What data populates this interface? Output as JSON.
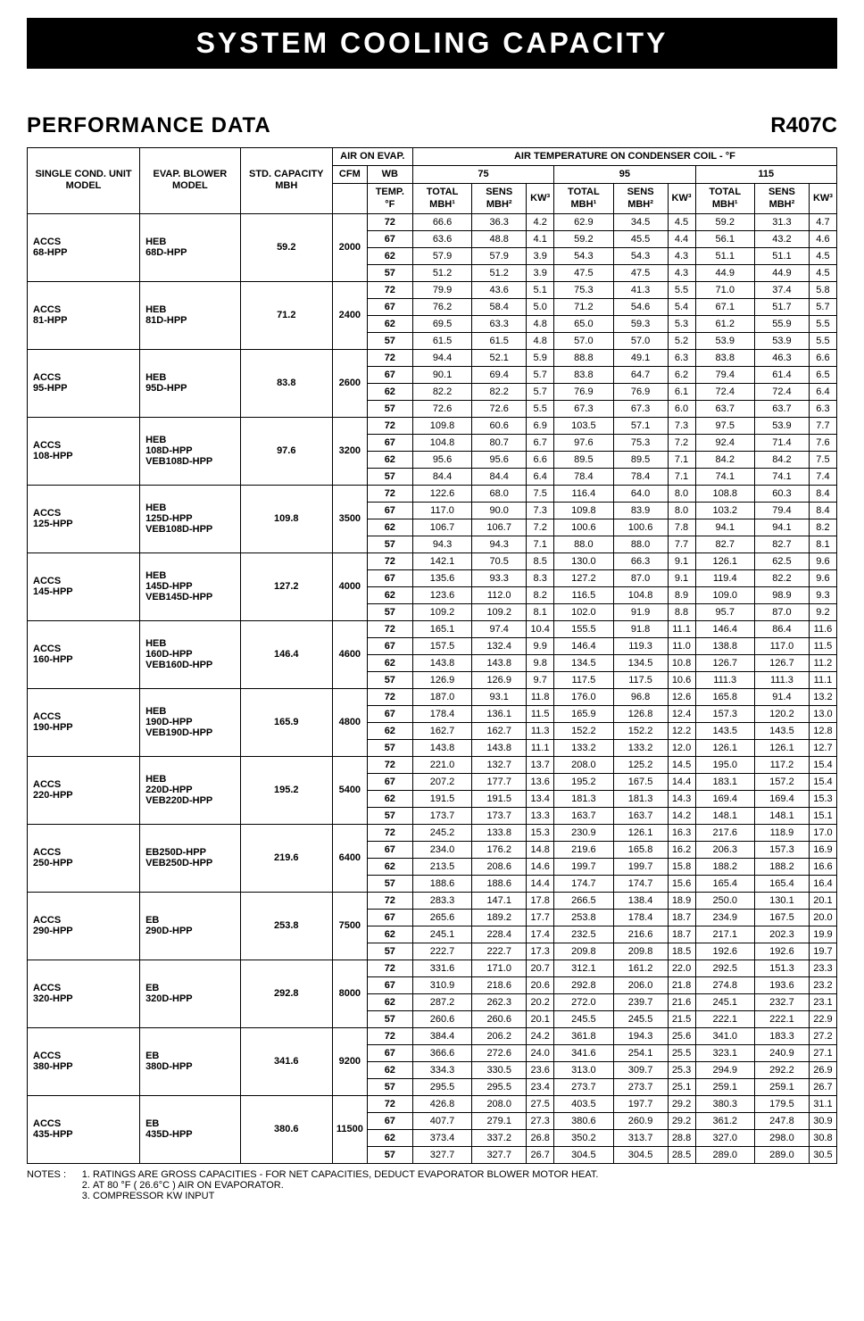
{
  "banner": "SYSTEM COOLING CAPACITY",
  "section_title": "PERFORMANCE DATA",
  "refrigerant": "R407C",
  "header": {
    "single_cond": "SINGLE COND. UNIT MODEL",
    "evap_blower": "EVAP. BLOWER MODEL",
    "std_capacity": "STD. CAPACITY MBH",
    "air_on_evap": "AIR ON EVAP.",
    "cfm": "CFM",
    "wb": "WB",
    "temp_f": "TEMP. °F",
    "cond_coil": "AIR TEMPERATURE ON CONDENSER COIL - °F",
    "t75": "75",
    "t95": "95",
    "t115": "115",
    "total_mbh": "TOTAL MBH¹",
    "sens_mbh": "SENS MBH²",
    "kw": "KW³"
  },
  "temps": [
    "72",
    "67",
    "62",
    "57"
  ],
  "groups": [
    {
      "unit": "ACCS 68-HPP",
      "blower": "HEB 68D-HPP",
      "std": "59.2",
      "cfm": "2000",
      "rows": [
        [
          "66.6",
          "36.3",
          "4.2",
          "62.9",
          "34.5",
          "4.5",
          "59.2",
          "31.3",
          "4.7"
        ],
        [
          "63.6",
          "48.8",
          "4.1",
          "59.2",
          "45.5",
          "4.4",
          "56.1",
          "43.2",
          "4.6"
        ],
        [
          "57.9",
          "57.9",
          "3.9",
          "54.3",
          "54.3",
          "4.3",
          "51.1",
          "51.1",
          "4.5"
        ],
        [
          "51.2",
          "51.2",
          "3.9",
          "47.5",
          "47.5",
          "4.3",
          "44.9",
          "44.9",
          "4.5"
        ]
      ]
    },
    {
      "unit": "ACCS 81-HPP",
      "blower": "HEB 81D-HPP",
      "std": "71.2",
      "cfm": "2400",
      "rows": [
        [
          "79.9",
          "43.6",
          "5.1",
          "75.3",
          "41.3",
          "5.5",
          "71.0",
          "37.4",
          "5.8"
        ],
        [
          "76.2",
          "58.4",
          "5.0",
          "71.2",
          "54.6",
          "5.4",
          "67.1",
          "51.7",
          "5.7"
        ],
        [
          "69.5",
          "63.3",
          "4.8",
          "65.0",
          "59.3",
          "5.3",
          "61.2",
          "55.9",
          "5.5"
        ],
        [
          "61.5",
          "61.5",
          "4.8",
          "57.0",
          "57.0",
          "5.2",
          "53.9",
          "53.9",
          "5.5"
        ]
      ]
    },
    {
      "unit": "ACCS 95-HPP",
      "blower": "HEB 95D-HPP",
      "std": "83.8",
      "cfm": "2600",
      "rows": [
        [
          "94.4",
          "52.1",
          "5.9",
          "88.8",
          "49.1",
          "6.3",
          "83.8",
          "46.3",
          "6.6"
        ],
        [
          "90.1",
          "69.4",
          "5.7",
          "83.8",
          "64.7",
          "6.2",
          "79.4",
          "61.4",
          "6.5"
        ],
        [
          "82.2",
          "82.2",
          "5.7",
          "76.9",
          "76.9",
          "6.1",
          "72.4",
          "72.4",
          "6.4"
        ],
        [
          "72.6",
          "72.6",
          "5.5",
          "67.3",
          "67.3",
          "6.0",
          "63.7",
          "63.7",
          "6.3"
        ]
      ]
    },
    {
      "unit": "ACCS 108-HPP",
      "blower": "HEB 108D-HPP VEB108D-HPP",
      "std": "97.6",
      "cfm": "3200",
      "rows": [
        [
          "109.8",
          "60.6",
          "6.9",
          "103.5",
          "57.1",
          "7.3",
          "97.5",
          "53.9",
          "7.7"
        ],
        [
          "104.8",
          "80.7",
          "6.7",
          "97.6",
          "75.3",
          "7.2",
          "92.4",
          "71.4",
          "7.6"
        ],
        [
          "95.6",
          "95.6",
          "6.6",
          "89.5",
          "89.5",
          "7.1",
          "84.2",
          "84.2",
          "7.5"
        ],
        [
          "84.4",
          "84.4",
          "6.4",
          "78.4",
          "78.4",
          "7.1",
          "74.1",
          "74.1",
          "7.4"
        ]
      ]
    },
    {
      "unit": "ACCS 125-HPP",
      "blower": "HEB 125D-HPP VEB108D-HPP",
      "std": "109.8",
      "cfm": "3500",
      "rows": [
        [
          "122.6",
          "68.0",
          "7.5",
          "116.4",
          "64.0",
          "8.0",
          "108.8",
          "60.3",
          "8.4"
        ],
        [
          "117.0",
          "90.0",
          "7.3",
          "109.8",
          "83.9",
          "8.0",
          "103.2",
          "79.4",
          "8.4"
        ],
        [
          "106.7",
          "106.7",
          "7.2",
          "100.6",
          "100.6",
          "7.8",
          "94.1",
          "94.1",
          "8.2"
        ],
        [
          "94.3",
          "94.3",
          "7.1",
          "88.0",
          "88.0",
          "7.7",
          "82.7",
          "82.7",
          "8.1"
        ]
      ]
    },
    {
      "unit": "ACCS 145-HPP",
      "blower": "HEB 145D-HPP VEB145D-HPP",
      "std": "127.2",
      "cfm": "4000",
      "rows": [
        [
          "142.1",
          "70.5",
          "8.5",
          "130.0",
          "66.3",
          "9.1",
          "126.1",
          "62.5",
          "9.6"
        ],
        [
          "135.6",
          "93.3",
          "8.3",
          "127.2",
          "87.0",
          "9.1",
          "119.4",
          "82.2",
          "9.6"
        ],
        [
          "123.6",
          "112.0",
          "8.2",
          "116.5",
          "104.8",
          "8.9",
          "109.0",
          "98.9",
          "9.3"
        ],
        [
          "109.2",
          "109.2",
          "8.1",
          "102.0",
          "91.9",
          "8.8",
          "95.7",
          "87.0",
          "9.2"
        ]
      ]
    },
    {
      "unit": "ACCS 160-HPP",
      "blower": "HEB 160D-HPP VEB160D-HPP",
      "std": "146.4",
      "cfm": "4600",
      "rows": [
        [
          "165.1",
          "97.4",
          "10.4",
          "155.5",
          "91.8",
          "11.1",
          "146.4",
          "86.4",
          "11.6"
        ],
        [
          "157.5",
          "132.4",
          "9.9",
          "146.4",
          "119.3",
          "11.0",
          "138.8",
          "117.0",
          "11.5"
        ],
        [
          "143.8",
          "143.8",
          "9.8",
          "134.5",
          "134.5",
          "10.8",
          "126.7",
          "126.7",
          "11.2"
        ],
        [
          "126.9",
          "126.9",
          "9.7",
          "117.5",
          "117.5",
          "10.6",
          "111.3",
          "111.3",
          "11.1"
        ]
      ]
    },
    {
      "unit": "ACCS 190-HPP",
      "blower": "HEB 190D-HPP VEB190D-HPP",
      "std": "165.9",
      "cfm": "4800",
      "rows": [
        [
          "187.0",
          "93.1",
          "11.8",
          "176.0",
          "96.8",
          "12.6",
          "165.8",
          "91.4",
          "13.2"
        ],
        [
          "178.4",
          "136.1",
          "11.5",
          "165.9",
          "126.8",
          "12.4",
          "157.3",
          "120.2",
          "13.0"
        ],
        [
          "162.7",
          "162.7",
          "11.3",
          "152.2",
          "152.2",
          "12.2",
          "143.5",
          "143.5",
          "12.8"
        ],
        [
          "143.8",
          "143.8",
          "11.1",
          "133.2",
          "133.2",
          "12.0",
          "126.1",
          "126.1",
          "12.7"
        ]
      ]
    },
    {
      "unit": "ACCS 220-HPP",
      "blower": "HEB 220D-HPP VEB220D-HPP",
      "std": "195.2",
      "cfm": "5400",
      "rows": [
        [
          "221.0",
          "132.7",
          "13.7",
          "208.0",
          "125.2",
          "14.5",
          "195.0",
          "117.2",
          "15.4"
        ],
        [
          "207.2",
          "177.7",
          "13.6",
          "195.2",
          "167.5",
          "14.4",
          "183.1",
          "157.2",
          "15.4"
        ],
        [
          "191.5",
          "191.5",
          "13.4",
          "181.3",
          "181.3",
          "14.3",
          "169.4",
          "169.4",
          "15.3"
        ],
        [
          "173.7",
          "173.7",
          "13.3",
          "163.7",
          "163.7",
          "14.2",
          "148.1",
          "148.1",
          "15.1"
        ]
      ]
    },
    {
      "unit": "ACCS 250-HPP",
      "blower": "EB250D-HPP VEB250D-HPP",
      "std": "219.6",
      "cfm": "6400",
      "rows": [
        [
          "245.2",
          "133.8",
          "15.3",
          "230.9",
          "126.1",
          "16.3",
          "217.6",
          "118.9",
          "17.0"
        ],
        [
          "234.0",
          "176.2",
          "14.8",
          "219.6",
          "165.8",
          "16.2",
          "206.3",
          "157.3",
          "16.9"
        ],
        [
          "213.5",
          "208.6",
          "14.6",
          "199.7",
          "199.7",
          "15.8",
          "188.2",
          "188.2",
          "16.6"
        ],
        [
          "188.6",
          "188.6",
          "14.4",
          "174.7",
          "174.7",
          "15.6",
          "165.4",
          "165.4",
          "16.4"
        ]
      ]
    },
    {
      "unit": "ACCS 290-HPP",
      "blower": "EB 290D-HPP",
      "std": "253.8",
      "cfm": "7500",
      "rows": [
        [
          "283.3",
          "147.1",
          "17.8",
          "266.5",
          "138.4",
          "18.9",
          "250.0",
          "130.1",
          "20.1"
        ],
        [
          "265.6",
          "189.2",
          "17.7",
          "253.8",
          "178.4",
          "18.7",
          "234.9",
          "167.5",
          "20.0"
        ],
        [
          "245.1",
          "228.4",
          "17.4",
          "232.5",
          "216.6",
          "18.7",
          "217.1",
          "202.3",
          "19.9"
        ],
        [
          "222.7",
          "222.7",
          "17.3",
          "209.8",
          "209.8",
          "18.5",
          "192.6",
          "192.6",
          "19.7"
        ]
      ]
    },
    {
      "unit": "ACCS 320-HPP",
      "blower": "EB 320D-HPP",
      "std": "292.8",
      "cfm": "8000",
      "rows": [
        [
          "331.6",
          "171.0",
          "20.7",
          "312.1",
          "161.2",
          "22.0",
          "292.5",
          "151.3",
          "23.3"
        ],
        [
          "310.9",
          "218.6",
          "20.6",
          "292.8",
          "206.0",
          "21.8",
          "274.8",
          "193.6",
          "23.2"
        ],
        [
          "287.2",
          "262.3",
          "20.2",
          "272.0",
          "239.7",
          "21.6",
          "245.1",
          "232.7",
          "23.1"
        ],
        [
          "260.6",
          "260.6",
          "20.1",
          "245.5",
          "245.5",
          "21.5",
          "222.1",
          "222.1",
          "22.9"
        ]
      ]
    },
    {
      "unit": "ACCS 380-HPP",
      "blower": "EB 380D-HPP",
      "std": "341.6",
      "cfm": "9200",
      "rows": [
        [
          "384.4",
          "206.2",
          "24.2",
          "361.8",
          "194.3",
          "25.6",
          "341.0",
          "183.3",
          "27.2"
        ],
        [
          "366.6",
          "272.6",
          "24.0",
          "341.6",
          "254.1",
          "25.5",
          "323.1",
          "240.9",
          "27.1"
        ],
        [
          "334.3",
          "330.5",
          "23.6",
          "313.0",
          "309.7",
          "25.3",
          "294.9",
          "292.2",
          "26.9"
        ],
        [
          "295.5",
          "295.5",
          "23.4",
          "273.7",
          "273.7",
          "25.1",
          "259.1",
          "259.1",
          "26.7"
        ]
      ]
    },
    {
      "unit": "ACCS 435-HPP",
      "blower": "EB 435D-HPP",
      "std": "380.6",
      "cfm": "11500",
      "rows": [
        [
          "426.8",
          "208.0",
          "27.5",
          "403.5",
          "197.7",
          "29.2",
          "380.3",
          "179.5",
          "31.1"
        ],
        [
          "407.7",
          "279.1",
          "27.3",
          "380.6",
          "260.9",
          "29.2",
          "361.2",
          "247.8",
          "30.9"
        ],
        [
          "373.4",
          "337.2",
          "26.8",
          "350.2",
          "313.7",
          "28.8",
          "327.0",
          "298.0",
          "30.8"
        ],
        [
          "327.7",
          "327.7",
          "26.7",
          "304.5",
          "304.5",
          "28.5",
          "289.0",
          "289.0",
          "30.5"
        ]
      ]
    }
  ],
  "notes_label": "NOTES :",
  "notes": [
    "RATINGS ARE GROSS CAPACITIES - FOR NET CAPACITIES, DEDUCT EVAPORATOR BLOWER MOTOR HEAT.",
    "AT 80 °F ( 26.6°C ) AIR ON EVAPORATOR.",
    "COMPRESSOR KW INPUT"
  ]
}
